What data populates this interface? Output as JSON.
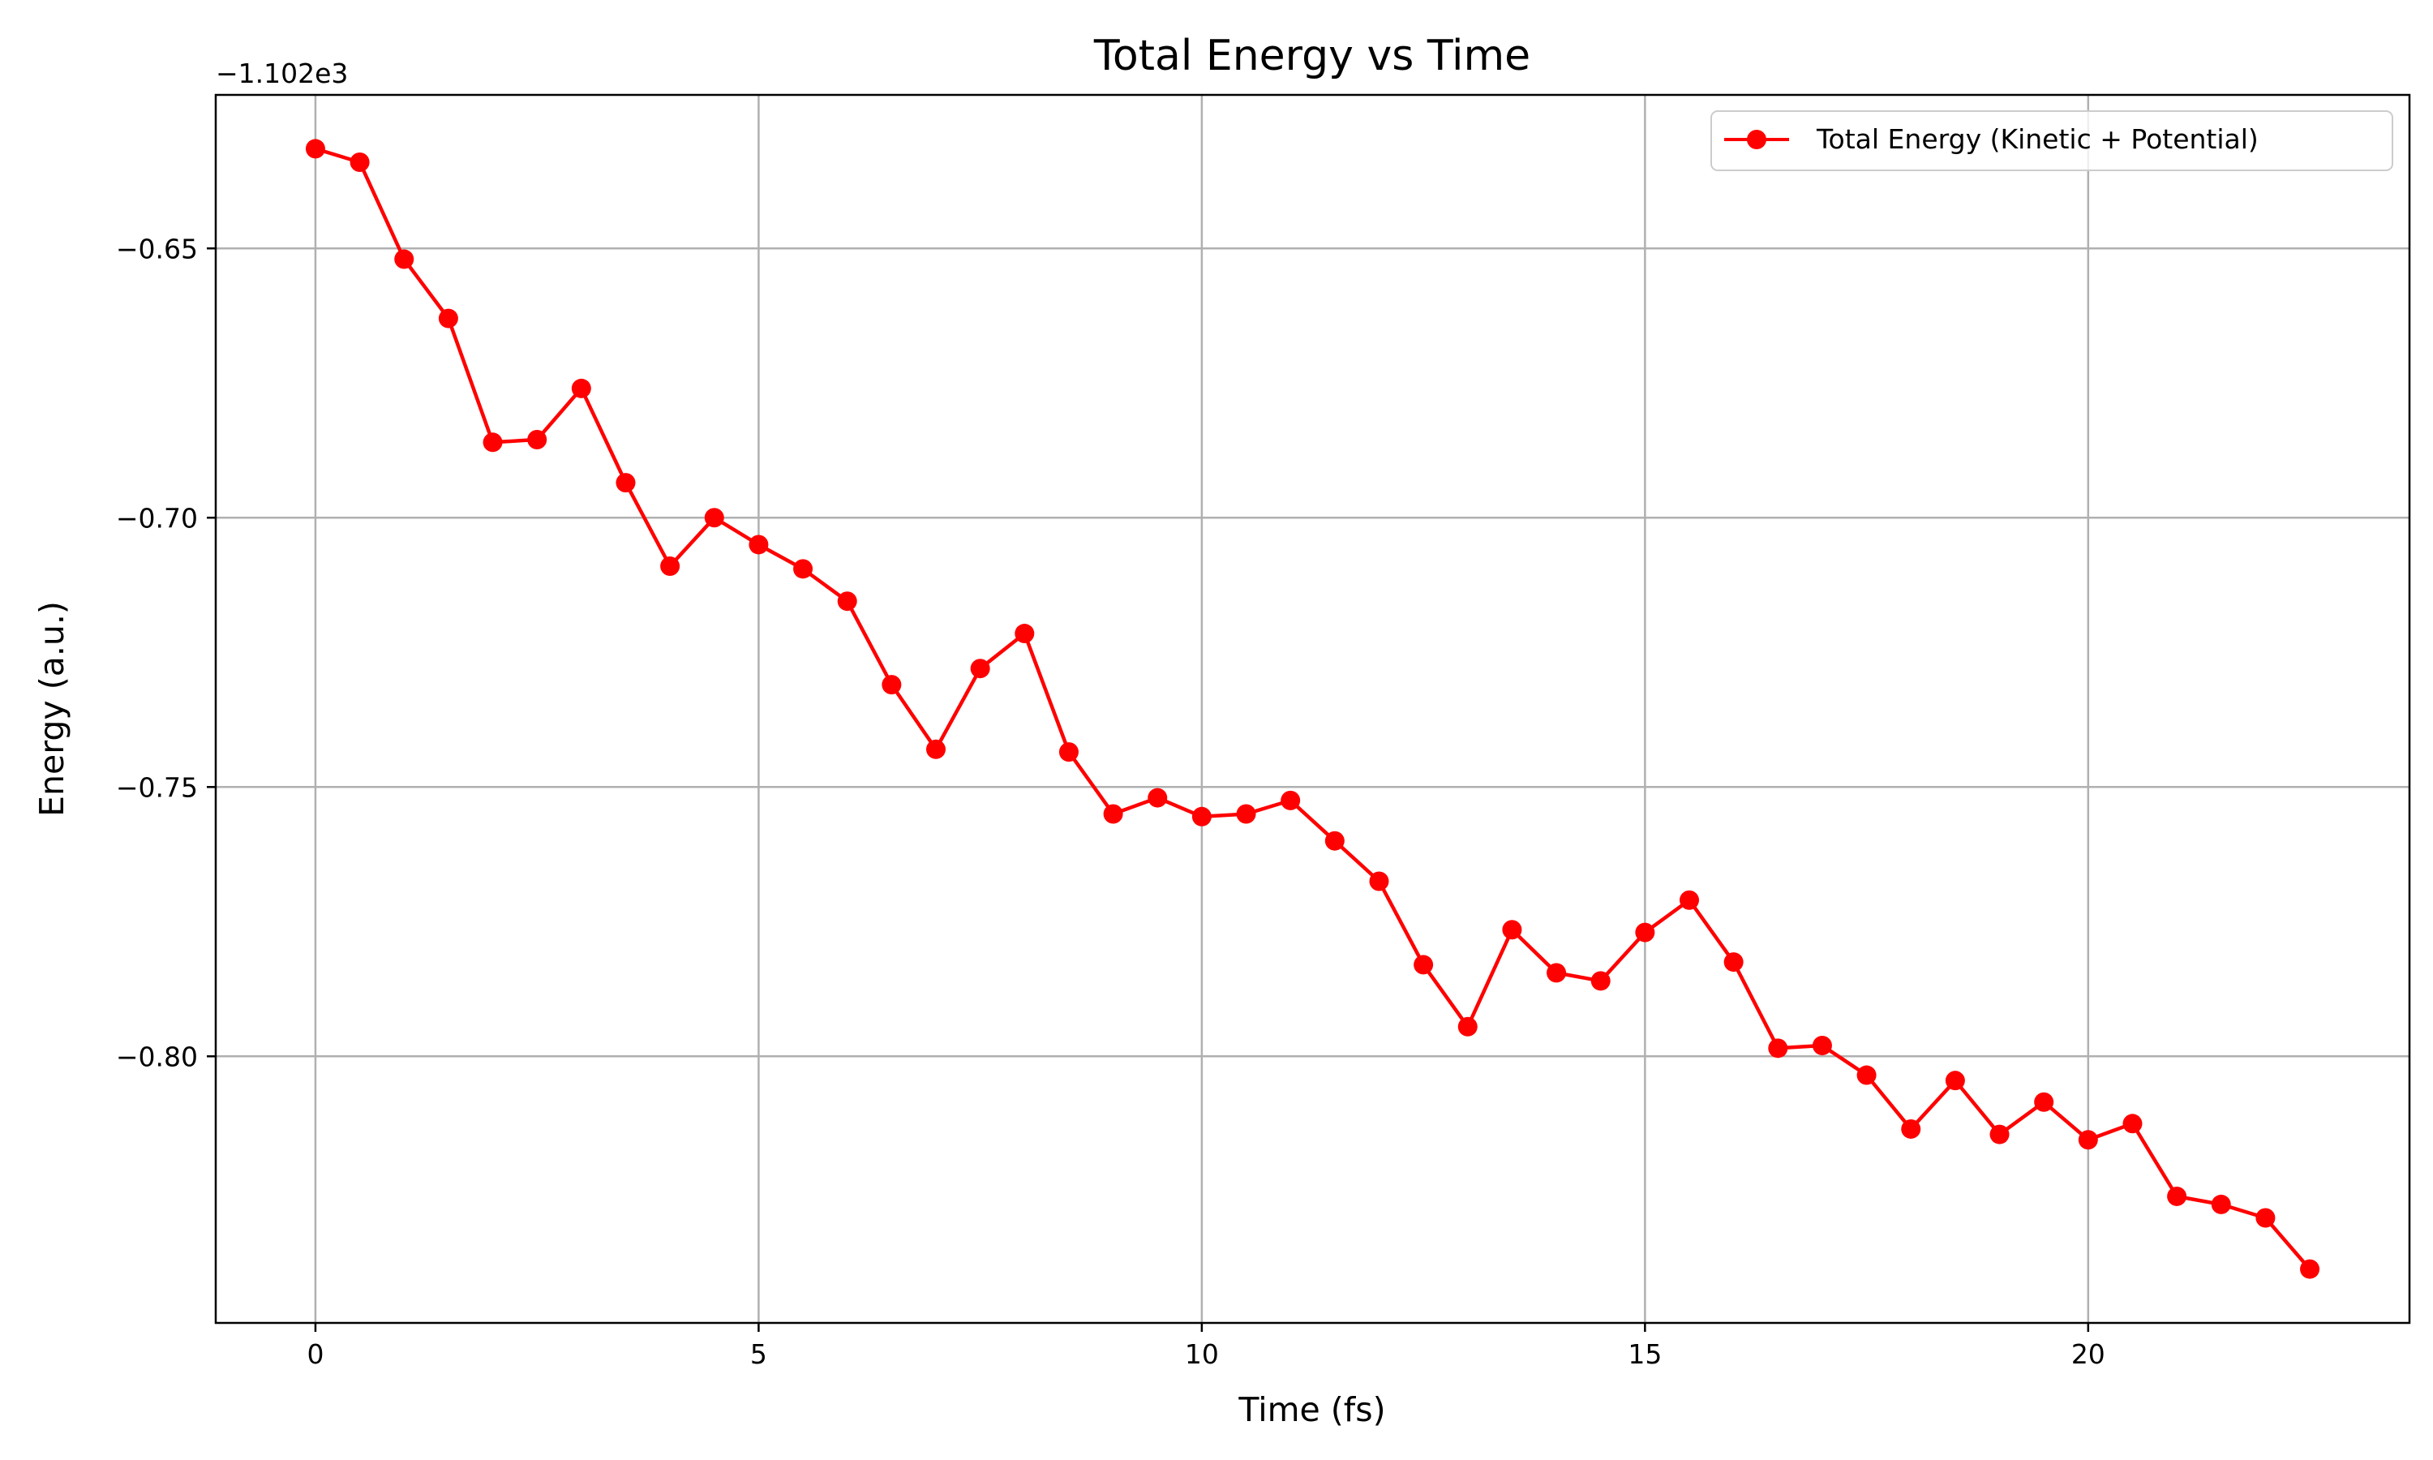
{
  "chart_data": {
    "type": "line",
    "title": "Total Energy vs Time",
    "xlabel": "Time (fs)",
    "ylabel": "Energy (a.u.)",
    "y_offset_label": "−1.102e3",
    "x": [
      0,
      0.5,
      1,
      1.5,
      2,
      2.5,
      3,
      3.5,
      4,
      4.5,
      5,
      5.5,
      6,
      6.5,
      7,
      7.5,
      8,
      8.5,
      9,
      9.5,
      10,
      10.5,
      11,
      11.5,
      12,
      12.5,
      13,
      13.5,
      14,
      14.5,
      15,
      15.5,
      16,
      16.5,
      17,
      17.5,
      18,
      18.5,
      19,
      19.5,
      20,
      20.5,
      21,
      21.5,
      22,
      22.5
    ],
    "series": [
      {
        "name": "Total Energy (Kinetic + Potential)",
        "color": "#ff0000",
        "marker": "circle",
        "values": [
          -0.6315,
          -0.634,
          -0.652,
          -0.663,
          -0.686,
          -0.6855,
          -0.676,
          -0.6935,
          -0.709,
          -0.7,
          -0.705,
          -0.7095,
          -0.7155,
          -0.731,
          -0.743,
          -0.728,
          -0.7215,
          -0.7435,
          -0.755,
          -0.752,
          -0.7555,
          -0.755,
          -0.7525,
          -0.76,
          -0.7675,
          -0.783,
          -0.7945,
          -0.7765,
          -0.7845,
          -0.786,
          -0.777,
          -0.771,
          -0.7825,
          -0.7985,
          -0.798,
          -0.8035,
          -0.8135,
          -0.8045,
          -0.8145,
          -0.8085,
          -0.8155,
          -0.8125,
          -0.826,
          -0.8275,
          -0.83,
          -0.8395
        ]
      }
    ],
    "xticks": [
      0,
      5,
      10,
      15,
      20
    ],
    "xtick_labels": [
      "0",
      "5",
      "10",
      "15",
      "20"
    ],
    "yticks": [
      -0.65,
      -0.7,
      -0.75,
      -0.8
    ],
    "ytick_labels": [
      "−0.65",
      "−0.70",
      "−0.75",
      "−0.80"
    ],
    "xlim": [
      -1.125,
      23.625
    ],
    "ylim": [
      -0.8495,
      -0.6215
    ],
    "grid": true,
    "legend_position": "upper right"
  }
}
